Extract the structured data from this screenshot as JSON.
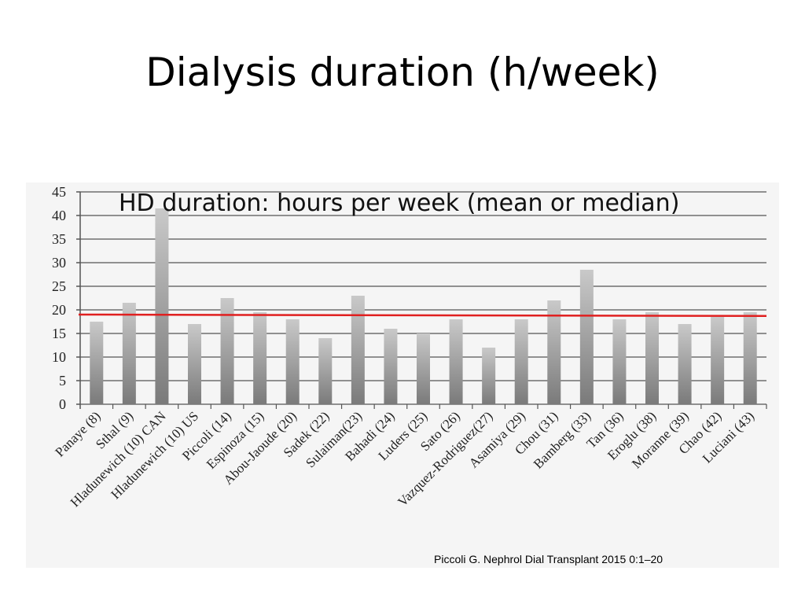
{
  "slide": {
    "title": "Dialysis duration (h/week)",
    "citation": "Piccoli G. Nephrol Dial Transplant 2015 0:1–20"
  },
  "chart_data": {
    "type": "bar",
    "title": "HD duration: hours per week (mean or median)",
    "xlabel": "",
    "ylabel": "",
    "ylim": [
      0,
      45
    ],
    "yticks": [
      0,
      5,
      10,
      15,
      20,
      25,
      30,
      35,
      40,
      45
    ],
    "grid": true,
    "categories": [
      "Panaye (8)",
      "Sthal (9)",
      "Hladunewich (10) CAN",
      "Hladunewich (10) US",
      "Piccoli (14)",
      "Espinoza  (15)",
      "Abou-Jaoude (20)",
      "Sadek (22)",
      "Sulaiman(23)",
      "Bahadi (24)",
      "Luders (25)",
      "Sato (26)",
      "Vazquez-Rodriguez(27)",
      "Asamiya (29)",
      "Chou (31)",
      "Bamberg (33)",
      "Tan (36)",
      "Eroglu (38)",
      "Moranne (39)",
      "Chao (42)",
      "Luciani (43)"
    ],
    "values": [
      17.5,
      21.5,
      41.5,
      17,
      22.5,
      19.5,
      18,
      14,
      23,
      16,
      15,
      18,
      12,
      18,
      22,
      28.5,
      18,
      19.5,
      17,
      18.5,
      19.5
    ],
    "reference_line": {
      "start": 19,
      "end": 18.7,
      "color": "#e02020"
    },
    "colors": {
      "bar_light": "#c9c9c9",
      "bar_dark": "#7a7a7a",
      "grid": "#6e6e6e"
    }
  }
}
